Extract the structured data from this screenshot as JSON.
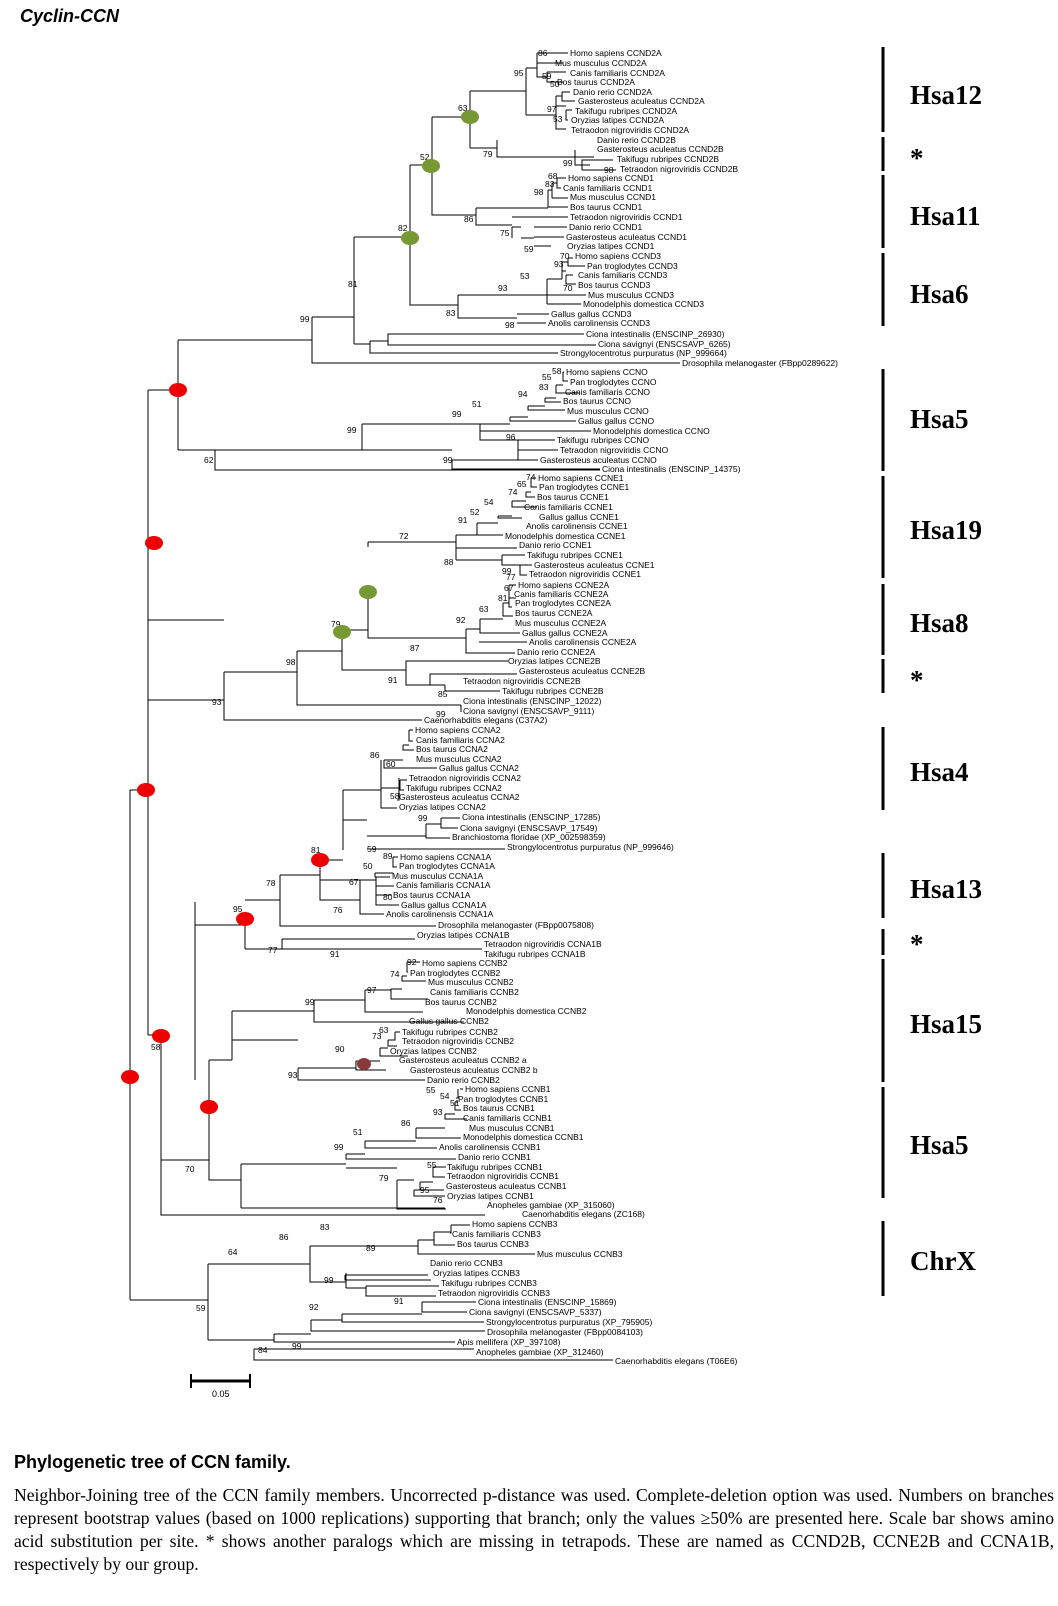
{
  "figure_title": "Cyclin-CCN",
  "caption": {
    "title": "Phylogenetic tree of  CCN family.",
    "body": "Neighbor-Joining tree of the CCN family members. Uncorrected p-distance was used. Complete-deletion option was used. Numbers on branches represent bootstrap values (based on 1000 replications) supporting that branch; only the values ≥50% are presented here. Scale bar shows amino acid substitution per site.  * shows another paralogs which are missing in tetrapods. These are named as CCND2B, CCNE2B and  CCNA1B, respectively by our group."
  },
  "scale_bar": {
    "label": "0.05"
  },
  "colors": {
    "duplication_red": "#ee0000",
    "duplication_green": "#779933",
    "loss_brown": "#8b3a3a"
  },
  "clades": [
    {
      "label": "Hsa12"
    },
    {
      "label": "*"
    },
    {
      "label": "Hsa11"
    },
    {
      "label": "Hsa6"
    },
    {
      "label": "Hsa5"
    },
    {
      "label": "Hsa19"
    },
    {
      "label": "Hsa8"
    },
    {
      "label": "*"
    },
    {
      "label": "Hsa4"
    },
    {
      "label": "Hsa13"
    },
    {
      "label": "*"
    },
    {
      "label": "Hsa15"
    },
    {
      "label": "Hsa5"
    },
    {
      "label": "ChrX"
    }
  ],
  "leaves": [
    "Homo sapiens CCND2A",
    "Mus musculus CCND2A",
    "Canis familiaris CCND2A",
    "Bos taurus CCND2A",
    "Danio rerio CCND2A",
    "Gasterosteus aculeatus CCND2A",
    "Takifugu rubripes CCND2A",
    "Oryzias latipes CCND2A",
    "Tetraodon nigroviridis CCND2A",
    "Danio rerio CCND2B",
    "Gasterosteus aculeatus CCND2B",
    "Takifugu rubripes CCND2B",
    "Tetraodon nigroviridis CCND2B",
    "Homo sapiens CCND1",
    "Canis familiaris CCND1",
    "Mus musculus CCND1",
    "Bos taurus CCND1",
    "Tetraodon nigroviridis CCND1",
    "Danio rerio CCND1",
    "Gasterosteus aculeatus CCND1",
    "Oryzias latipes CCND1",
    "Homo sapiens CCND3",
    "Pan troglodytes CCND3",
    "Canis familiaris CCND3",
    "Bos taurus CCND3",
    "Mus musculus CCND3",
    "Monodelphis domestica CCND3",
    "Gallus gallus CCND3",
    "Anolis carolinensis CCND3",
    "Ciona intestinalis (ENSCINP_26930)",
    "Ciona savignyi (ENSCSAVP_6265)",
    "Strongylocentrotus purpuratus (NP_999664)",
    "Drosophila melanogaster (FBpp0289622)",
    "Homo sapiens CCNO",
    "Pan troglodytes CCNO",
    "Canis familiaris CCNO",
    "Bos taurus CCNO",
    "Mus musculus CCNO",
    "Gallus gallus CCNO",
    "Monodelphis domestica CCNO",
    "Takifugu rubripes CCNO",
    "Tetraodon nigroviridis CCNO",
    "Gasterosteus aculeatus CCNO",
    "Ciona intestinalis (ENSCINP_14375)",
    "Homo sapiens CCNE1",
    "Pan troglodytes CCNE1",
    "Bos taurus CCNE1",
    "Canis familiaris CCNE1",
    "Gallus gallus CCNE1",
    "Anolis carolinensis CCNE1",
    "Monodelphis domestica CCNE1",
    "Danio rerio CCNE1",
    "Takifugu rubripes CCNE1",
    "Gasterosteus aculeatus CCNE1",
    "Tetraodon nigroviridis CCNE1",
    "Homo sapiens CCNE2A",
    "Canis familiaris CCNE2A",
    "Pan troglodytes CCNE2A",
    "Bos taurus CCNE2A",
    "Mus musculus CCNE2A",
    "Gallus gallus CCNE2A",
    "Anolis carolinensis CCNE2A",
    "Danio rerio CCNE2A",
    "Oryzias latipes CCNE2B",
    "Gasterosteus aculeatus CCNE2B",
    "Tetraodon nigroviridis CCNE2B",
    "Takifugu rubripes CCNE2B",
    "Ciona intestinalis (ENSCINP_12022)",
    "Ciona savignyi (ENSCSAVP_9111)",
    "Caenorhabditis elegans (C37A2)",
    "Homo sapiens CCNA2",
    "Canis familiaris CCNA2",
    "Bos taurus CCNA2",
    "Mus musculus CCNA2",
    "Gallus gallus CCNA2",
    "Tetraodon nigroviridis CCNA2",
    "Takifugu rubripes CCNA2",
    "Gasterosteus aculeatus CCNA2",
    "Oryzias latipes CCNA2",
    "Ciona intestinalis (ENSCINP_17285)",
    "Ciona savignyi (ENSCSAVP_17549)",
    "Branchiostoma floridae (XP_002598359)",
    "Strongylocentrotus purpuratus (NP_999646)",
    "Homo sapiens CCNA1A",
    "Pan troglodytes CCNA1A",
    "Mus musculus CCNA1A",
    "Canis familiaris CCNA1A",
    "Bos taurus CCNA1A",
    "Gallus gallus CCNA1A",
    "Anolis carolinensis CCNA1A",
    "Drosophila melanogaster (FBpp0075808)",
    "Oryzias latipes CCNA1B",
    "Tetraodon nigroviridis CCNA1B",
    "Takifugu rubripes CCNA1B",
    "Homo sapiens CCNB2",
    "Pan troglodytes CCNB2",
    "Mus musculus CCNB2",
    "Canis familiaris CCNB2",
    "Bos taurus CCNB2",
    "Monodelphis domestica CCNB2",
    "Gallus gallus CCNB2",
    "Takifugu rubripes CCNB2",
    "Tetraodon nigroviridis CCNB2",
    "Oryzias latipes CCNB2",
    "Gasterosteus aculeatus CCNB2 a",
    "Gasterosteus aculeatus CCNB2 b",
    "Danio rerio CCNB2",
    "Homo sapiens CCNB1",
    "Pan troglodytes CCNB1",
    "Bos taurus CCNB1",
    "Canis familiaris CCNB1",
    "Mus musculus CCNB1",
    "Monodelphis domestica CCNB1",
    "Anolis carolinensis CCNB1",
    "Danio rerio CCNB1",
    "Takifugu rubripes CCNB1",
    "Tetraodon nigroviridis CCNB1",
    "Gasterosteus aculeatus CCNB1",
    "Oryzias latipes CCNB1",
    "Anopheles gambiae (XP_315060)",
    "Caenorhabditis elegans (ZC168)",
    "Homo sapiens CCNB3",
    "Canis familiaris CCNB3",
    "Bos taurus CCNB3",
    "Mus musculus CCNB3",
    "Danio rerio CCNB3",
    "Oryzias latipes CCNB3",
    "Takifugu rubripes CCNB3",
    "Tetraodon nigroviridis CCNB3",
    "Ciona intestinalis (ENSCINP_15869)",
    "Ciona savignyi (ENSCSAVP_5337)",
    "Strongylocentrotus purpuratus (XP_795905)",
    "Drosophila melanogaster (FBpp0084103)",
    "Apis mellifera (XP_397108)",
    "Anopheles gambiae (XP_312460)",
    "Caenorhabditis elegans (T06E6)"
  ],
  "bootstrap": [
    "86",
    "95",
    "59",
    "50",
    "97",
    "53",
    "63",
    "79",
    "99",
    "98",
    "52",
    "68",
    "83",
    "98",
    "86",
    "75",
    "59",
    "82",
    "70",
    "93",
    "53",
    "70",
    "93",
    "83",
    "98",
    "81",
    "99",
    "58",
    "55",
    "83",
    "94",
    "51",
    "99",
    "99",
    "96",
    "99",
    "62",
    "74",
    "65",
    "74",
    "54",
    "52",
    "91",
    "72",
    "88",
    "99",
    "77",
    "67",
    "81",
    "63",
    "92",
    "87",
    "79",
    "98",
    "91",
    "85",
    "99",
    "93",
    "60",
    "86",
    "58",
    "99",
    "59",
    "81",
    "89",
    "50",
    "67",
    "80",
    "76",
    "78",
    "95",
    "77",
    "91",
    "92",
    "74",
    "97",
    "99",
    "63",
    "73",
    "90",
    "93",
    "58",
    "55",
    "54",
    "51",
    "93",
    "86",
    "51",
    "99",
    "55",
    "79",
    "95",
    "76",
    "70",
    "83",
    "86",
    "89",
    "64",
    "99",
    "91",
    "92",
    "99",
    "84",
    "59",
    "55"
  ]
}
